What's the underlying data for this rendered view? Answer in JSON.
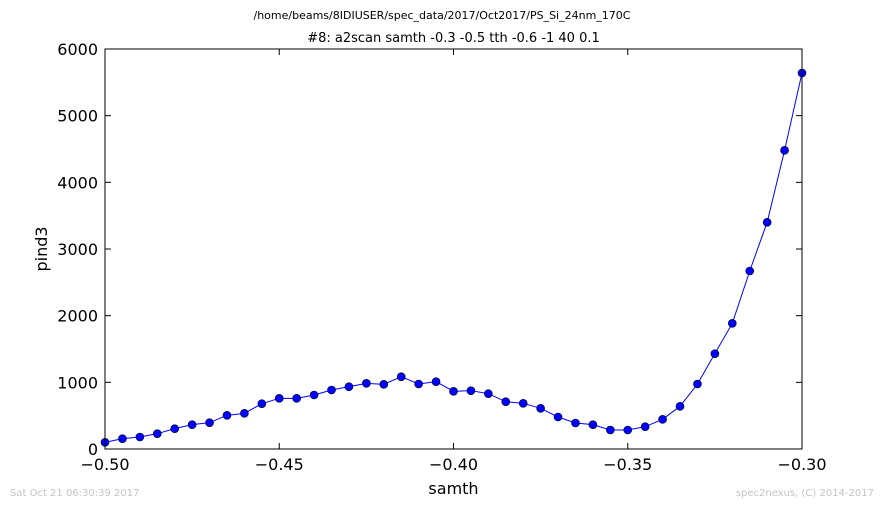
{
  "header": {
    "suptitle": "/home/beams/8IDIUSER/spec_data/2017/Oct2017/PS_Si_24nm_170C",
    "footer_left": "Sat Oct 21 06:30:39 2017",
    "footer_right": "spec2nexus, (C) 2014-2017"
  },
  "colors": {
    "series": "#0000ff",
    "axes": "#000000",
    "footer": "#c4c4c4"
  },
  "chart_data": {
    "type": "line",
    "title": "#8: a2scan  samth -0.3 -0.5  tth -0.6 -1  40 0.1",
    "xlabel": "samth",
    "ylabel": "pind3",
    "xlim": [
      -0.5,
      -0.3
    ],
    "ylim": [
      0,
      6000
    ],
    "xticks": [
      -0.5,
      -0.45,
      -0.4,
      -0.35,
      -0.3
    ],
    "xtick_labels": [
      "−0.50",
      "−0.45",
      "−0.40",
      "−0.35",
      "−0.30"
    ],
    "yticks": [
      0,
      1000,
      2000,
      3000,
      4000,
      5000,
      6000
    ],
    "ytick_labels": [
      "0",
      "1000",
      "2000",
      "3000",
      "4000",
      "5000",
      "6000"
    ],
    "grid": false,
    "legend": "none",
    "marker": "circle",
    "series": [
      {
        "x": [
          -0.5,
          -0.495,
          -0.49,
          -0.485,
          -0.48,
          -0.475,
          -0.47,
          -0.465,
          -0.46,
          -0.455,
          -0.45,
          -0.445,
          -0.44,
          -0.435,
          -0.43,
          -0.425,
          -0.42,
          -0.415,
          -0.41,
          -0.405,
          -0.4,
          -0.395,
          -0.39,
          -0.385,
          -0.38,
          -0.375,
          -0.37,
          -0.365,
          -0.36,
          -0.355,
          -0.35,
          -0.345,
          -0.34,
          -0.335,
          -0.33,
          -0.325,
          -0.32,
          -0.315,
          -0.31,
          -0.305,
          -0.3
        ],
        "values": [
          100,
          155,
          180,
          230,
          305,
          365,
          395,
          505,
          535,
          680,
          760,
          760,
          810,
          885,
          935,
          985,
          970,
          1085,
          975,
          1010,
          865,
          875,
          830,
          710,
          685,
          610,
          480,
          390,
          365,
          285,
          285,
          335,
          445,
          640,
          975,
          1430,
          1885,
          2670,
          3400,
          4480,
          5640
        ]
      }
    ]
  }
}
